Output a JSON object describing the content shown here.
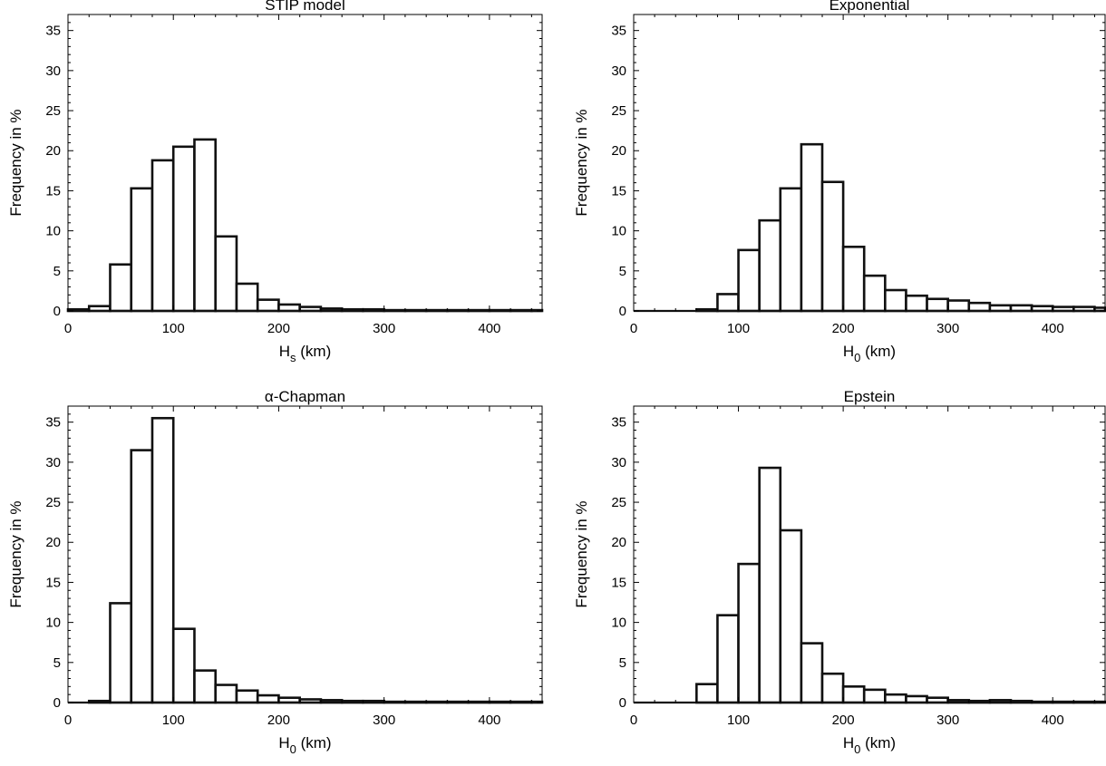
{
  "chart_data": [
    {
      "type": "bar",
      "title": "STIP model",
      "xlabel": "H",
      "xlabel_sub": "s",
      "xlabel_unit": "(km)",
      "ylabel": "Frequency in %",
      "xlim": [
        0,
        450
      ],
      "ylim": [
        0,
        37
      ],
      "xticks": [
        0,
        100,
        200,
        300,
        400
      ],
      "yticks": [
        0,
        5,
        10,
        15,
        20,
        25,
        30,
        35
      ],
      "bin_width": 20,
      "bin_starts": [
        0,
        20,
        40,
        60,
        80,
        100,
        120,
        140,
        160,
        180,
        200,
        220,
        240,
        260,
        280,
        300,
        320,
        340,
        360,
        380,
        400,
        420,
        440
      ],
      "values": [
        0.2,
        0.6,
        5.8,
        15.3,
        18.8,
        20.5,
        21.4,
        9.3,
        3.4,
        1.4,
        0.8,
        0.5,
        0.3,
        0.2,
        0.2,
        0.1,
        0.1,
        0.1,
        0.1,
        0.1,
        0.1,
        0.1,
        0.1
      ]
    },
    {
      "type": "bar",
      "title": "Exponential",
      "xlabel": "H",
      "xlabel_sub": "0",
      "xlabel_unit": "(km)",
      "ylabel": "Frequency in %",
      "xlim": [
        0,
        450
      ],
      "ylim": [
        0,
        37
      ],
      "xticks": [
        0,
        100,
        200,
        300,
        400
      ],
      "yticks": [
        0,
        5,
        10,
        15,
        20,
        25,
        30,
        35
      ],
      "bin_width": 20,
      "bin_starts": [
        0,
        20,
        40,
        60,
        80,
        100,
        120,
        140,
        160,
        180,
        200,
        220,
        240,
        260,
        280,
        300,
        320,
        340,
        360,
        380,
        400,
        420,
        440
      ],
      "values": [
        0,
        0,
        0,
        0.2,
        2.1,
        7.6,
        11.3,
        15.3,
        20.8,
        16.1,
        8.0,
        4.4,
        2.6,
        1.9,
        1.5,
        1.3,
        1.0,
        0.7,
        0.7,
        0.6,
        0.5,
        0.5,
        0.4
      ]
    },
    {
      "type": "bar",
      "title": "α-Chapman",
      "xlabel": "H",
      "xlabel_sub": "0",
      "xlabel_unit": "(km)",
      "ylabel": "Frequency in %",
      "xlim": [
        0,
        450
      ],
      "ylim": [
        0,
        37
      ],
      "xticks": [
        0,
        100,
        200,
        300,
        400
      ],
      "yticks": [
        0,
        5,
        10,
        15,
        20,
        25,
        30,
        35
      ],
      "bin_width": 20,
      "bin_starts": [
        0,
        20,
        40,
        60,
        80,
        100,
        120,
        140,
        160,
        180,
        200,
        220,
        240,
        260,
        280,
        300,
        320,
        340,
        360,
        380,
        400,
        420,
        440
      ],
      "values": [
        0,
        0.2,
        12.4,
        31.5,
        35.5,
        9.2,
        4.0,
        2.2,
        1.5,
        0.9,
        0.6,
        0.4,
        0.3,
        0.2,
        0.2,
        0.1,
        0.1,
        0.1,
        0.1,
        0.1,
        0.1,
        0.1,
        0.1
      ]
    },
    {
      "type": "bar",
      "title": "Epstein",
      "xlabel": "H",
      "xlabel_sub": "0",
      "xlabel_unit": "(km)",
      "ylabel": "Frequency in %",
      "xlim": [
        0,
        450
      ],
      "ylim": [
        0,
        37
      ],
      "xticks": [
        0,
        100,
        200,
        300,
        400
      ],
      "yticks": [
        0,
        5,
        10,
        15,
        20,
        25,
        30,
        35
      ],
      "bin_width": 20,
      "bin_starts": [
        0,
        20,
        40,
        60,
        80,
        100,
        120,
        140,
        160,
        180,
        200,
        220,
        240,
        260,
        280,
        300,
        320,
        340,
        360,
        380,
        400,
        420,
        440
      ],
      "values": [
        0,
        0,
        0,
        2.3,
        10.9,
        17.3,
        29.3,
        21.5,
        7.4,
        3.6,
        2.0,
        1.6,
        1.0,
        0.8,
        0.6,
        0.3,
        0.2,
        0.3,
        0.2,
        0.1,
        0.1,
        0.1,
        0.1
      ]
    }
  ]
}
